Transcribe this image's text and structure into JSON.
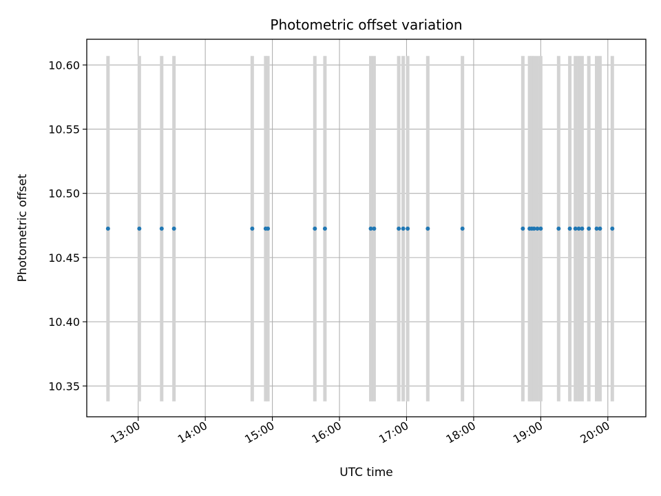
{
  "chart_data": {
    "type": "scatter",
    "title": "Photometric offset variation",
    "xlabel": "UTC time",
    "ylabel": "Photometric offset",
    "xlim": [
      "12:14",
      "20:34"
    ],
    "ylim": [
      10.326,
      10.62
    ],
    "x_ticks": [
      "13:00",
      "14:00",
      "15:00",
      "16:00",
      "17:00",
      "18:00",
      "19:00",
      "20:00"
    ],
    "y_ticks": [
      10.35,
      10.4,
      10.45,
      10.5,
      10.55,
      10.6
    ],
    "y_tick_labels": [
      "10.35",
      "10.40",
      "10.45",
      "10.50",
      "10.55",
      "10.60"
    ],
    "grid": true,
    "marker_color": "#1f77b4",
    "errorbar_color": "#d3d3d3",
    "points": [
      {
        "x": "12:33",
        "y": 10.4725,
        "err": 0.1345
      },
      {
        "x": "13:01",
        "y": 10.4725,
        "err": 0.1345
      },
      {
        "x": "13:21",
        "y": 10.4725,
        "err": 0.1345
      },
      {
        "x": "13:32",
        "y": 10.4725,
        "err": 0.1345
      },
      {
        "x": "14:42",
        "y": 10.4725,
        "err": 0.1345
      },
      {
        "x": "14:54",
        "y": 10.4725,
        "err": 0.1345
      },
      {
        "x": "14:56",
        "y": 10.4725,
        "err": 0.1345
      },
      {
        "x": "15:38",
        "y": 10.4725,
        "err": 0.1345
      },
      {
        "x": "15:47",
        "y": 10.4725,
        "err": 0.1345
      },
      {
        "x": "16:28",
        "y": 10.4725,
        "err": 0.1345
      },
      {
        "x": "16:31",
        "y": 10.4725,
        "err": 0.1345
      },
      {
        "x": "16:53",
        "y": 10.4725,
        "err": 0.1345
      },
      {
        "x": "16:57",
        "y": 10.4725,
        "err": 0.1345
      },
      {
        "x": "17:01",
        "y": 10.4725,
        "err": 0.1345
      },
      {
        "x": "17:19",
        "y": 10.4725,
        "err": 0.1345
      },
      {
        "x": "17:50",
        "y": 10.4725,
        "err": 0.1345
      },
      {
        "x": "18:44",
        "y": 10.4725,
        "err": 0.1345
      },
      {
        "x": "18:50",
        "y": 10.4725,
        "err": 0.1345
      },
      {
        "x": "18:52",
        "y": 10.4725,
        "err": 0.1345
      },
      {
        "x": "18:54",
        "y": 10.4725,
        "err": 0.1345
      },
      {
        "x": "18:57",
        "y": 10.4725,
        "err": 0.1345
      },
      {
        "x": "19:00",
        "y": 10.4725,
        "err": 0.1345
      },
      {
        "x": "19:16",
        "y": 10.4725,
        "err": 0.1345
      },
      {
        "x": "19:26",
        "y": 10.4725,
        "err": 0.1345
      },
      {
        "x": "19:31",
        "y": 10.4725,
        "err": 0.1345
      },
      {
        "x": "19:34",
        "y": 10.4725,
        "err": 0.1345
      },
      {
        "x": "19:37",
        "y": 10.4725,
        "err": 0.1345
      },
      {
        "x": "19:43",
        "y": 10.4725,
        "err": 0.1345
      },
      {
        "x": "19:50",
        "y": 10.4725,
        "err": 0.1345
      },
      {
        "x": "19:53",
        "y": 10.4725,
        "err": 0.1345
      },
      {
        "x": "20:04",
        "y": 10.4725,
        "err": 0.1345
      }
    ]
  }
}
